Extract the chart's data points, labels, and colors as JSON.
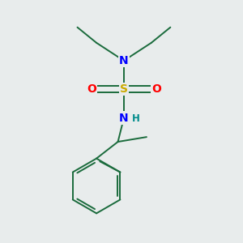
{
  "background_color": "#e8ecec",
  "atom_colors": {
    "C": "#1a6b3c",
    "N": "#0000ff",
    "S": "#ccaa00",
    "O": "#ff0000",
    "H": "#008b8b"
  },
  "bond_color": "#1a6b3c",
  "bond_lw": 1.4,
  "figsize": [
    3.0,
    3.0
  ],
  "dpi": 100,
  "xlim": [
    0,
    10
  ],
  "ylim": [
    0,
    10
  ]
}
